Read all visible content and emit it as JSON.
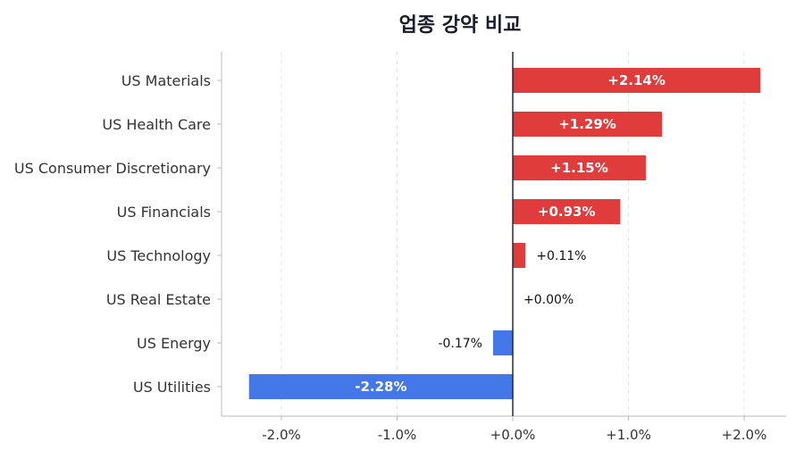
{
  "chart_data": {
    "type": "bar",
    "orientation": "horizontal",
    "title": "업종 강약 비교",
    "xlabel": "",
    "ylabel": "",
    "xlim": [
      -2.5,
      2.4
    ],
    "grid": "vertical-dashed",
    "categories": [
      "US Materials",
      "US Health Care",
      "US Consumer Discretionary",
      "US Financials",
      "US Technology",
      "US Real Estate",
      "US Energy",
      "US Utilities"
    ],
    "values": [
      2.14,
      1.29,
      1.15,
      0.93,
      0.11,
      0.0,
      -0.17,
      -2.28
    ],
    "data_labels": [
      "+2.14%",
      "+1.29%",
      "+1.15%",
      "+0.93%",
      "+0.11%",
      "+0.00%",
      "-0.17%",
      "-2.28%"
    ],
    "x_ticks": [
      -2,
      -1,
      0,
      1,
      2
    ],
    "x_tick_labels": [
      "-2.0%",
      "-1.0%",
      "+0.0%",
      "+1.0%",
      "+2.0%"
    ],
    "colors": {
      "positive": "#e03c3c",
      "negative": "#4478e8",
      "label_inside": "#ffffff",
      "label_outside": "#111111",
      "zero_line": "#1a1a2e",
      "axis": "#bbbbbb",
      "grid": "#e4e4e4",
      "tick_text": "#333333"
    }
  }
}
